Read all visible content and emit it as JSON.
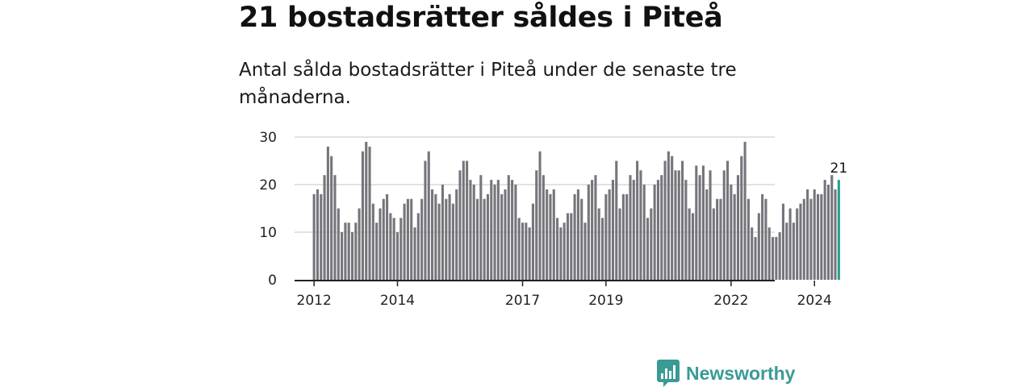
{
  "title": "21 bostadsrätter såldes i Piteå",
  "subtitle": "Antal sålda bostadsrätter i Piteå under de senaste tre månaderna.",
  "brand": {
    "name": "Newsworthy",
    "color": "#3a9a96",
    "icon": "newsworthy-logo-icon"
  },
  "colors": {
    "bar": "#76757c",
    "highlight": "#2a9d90",
    "grid": "#d9d9d9",
    "axis": "#222222",
    "text": "#222222"
  },
  "chart_data": {
    "type": "bar",
    "title": "21 bostadsrätter såldes i Piteå",
    "xlabel": "",
    "ylabel": "",
    "ylim": [
      0,
      30
    ],
    "yticks": [
      0,
      10,
      20,
      30
    ],
    "grid": true,
    "start": "2012-01",
    "frequency": "monthly",
    "x_tick_labels": [
      {
        "label": "2012",
        "index": 0
      },
      {
        "label": "2014",
        "index": 24
      },
      {
        "label": "2017",
        "index": 60
      },
      {
        "label": "2019",
        "index": 84
      },
      {
        "label": "2022",
        "index": 120
      },
      {
        "label": "2024",
        "index": 144
      }
    ],
    "values": [
      18,
      19,
      18,
      22,
      28,
      26,
      22,
      15,
      10,
      12,
      12,
      10,
      12,
      15,
      27,
      29,
      28,
      16,
      12,
      15,
      17,
      18,
      14,
      13,
      10,
      13,
      16,
      17,
      17,
      11,
      14,
      17,
      25,
      27,
      19,
      18,
      16,
      20,
      17,
      18,
      16,
      19,
      23,
      25,
      25,
      21,
      20,
      17,
      22,
      17,
      18,
      21,
      20,
      21,
      18,
      19,
      22,
      21,
      20,
      13,
      12,
      12,
      11,
      16,
      23,
      27,
      22,
      19,
      18,
      19,
      13,
      11,
      12,
      14,
      14,
      18,
      19,
      17,
      12,
      20,
      21,
      22,
      15,
      13,
      18,
      19,
      21,
      25,
      15,
      18,
      18,
      22,
      21,
      25,
      23,
      20,
      13,
      15,
      20,
      21,
      22,
      25,
      27,
      26,
      23,
      23,
      25,
      21,
      15,
      14,
      24,
      22,
      24,
      19,
      23,
      15,
      17,
      17,
      23,
      25,
      20,
      18,
      22,
      26,
      29,
      17,
      11,
      9,
      14,
      18,
      17,
      11,
      9,
      9,
      10,
      16,
      12,
      15,
      12,
      15,
      16,
      17,
      19,
      17,
      19,
      18,
      18,
      21,
      20,
      22,
      19,
      21
    ],
    "highlight_index": 151,
    "annotations": [
      {
        "text": "21",
        "index": 151
      }
    ]
  }
}
